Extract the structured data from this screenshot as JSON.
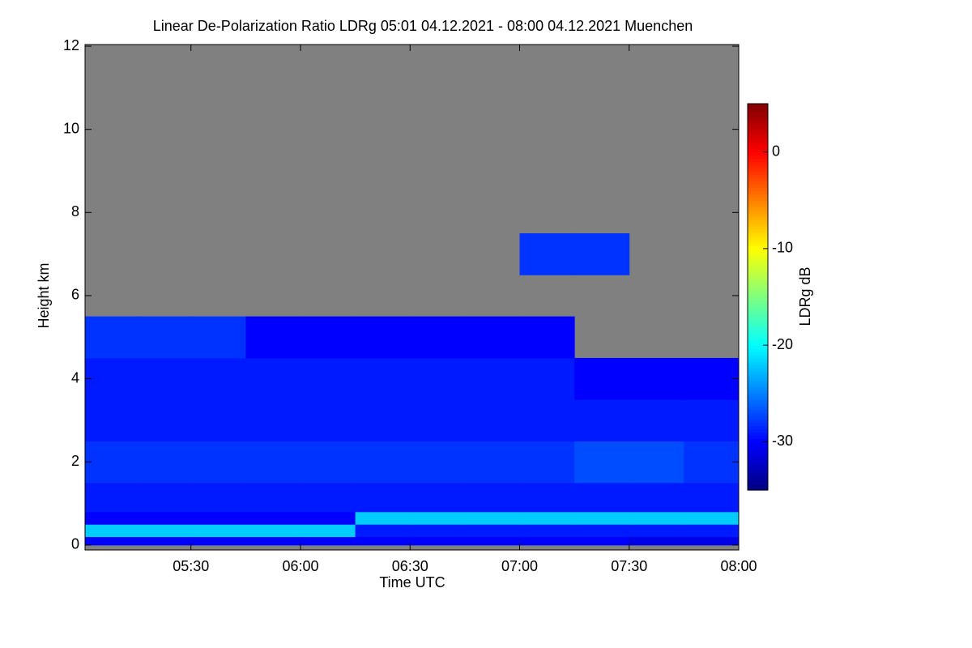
{
  "chart_data": {
    "type": "heatmap",
    "title": "Linear De-Polarization Ratio LDRg   05:01 04.12.2021 - 08:00 04.12.2021 Muenchen",
    "xlabel": "Time UTC",
    "ylabel": "Height km",
    "colorbar_label": "LDRg dB",
    "xlim": [
      301,
      480
    ],
    "ylim": [
      -0.12,
      12.04
    ],
    "xticks": [
      {
        "value": 330,
        "label": "05:30"
      },
      {
        "value": 360,
        "label": "06:00"
      },
      {
        "value": 390,
        "label": "06:30"
      },
      {
        "value": 420,
        "label": "07:00"
      },
      {
        "value": 450,
        "label": "07:30"
      },
      {
        "value": 480,
        "label": "08:00"
      }
    ],
    "yticks": [
      0,
      2,
      4,
      6,
      8,
      10,
      12
    ],
    "clim": [
      -35,
      5
    ],
    "cticks": [
      0,
      -10,
      -20,
      -30
    ],
    "colormap": "jet",
    "nodata_color": "#808080",
    "xbins": [
      301,
      315,
      330,
      345,
      360,
      375,
      390,
      405,
      420,
      435,
      450,
      465,
      480
    ],
    "ybins": [
      0,
      0.2,
      0.5,
      0.8,
      1.5,
      2.5,
      3.5,
      4.5,
      5.5,
      6.5,
      7.5,
      12
    ],
    "values": [
      [
        -30,
        -30,
        -30,
        -30,
        -30,
        -30,
        -30,
        -30,
        -30,
        -30,
        -31,
        -31
      ],
      [
        -22,
        -22,
        -22,
        -22,
        -22,
        -29,
        -29,
        -29,
        -29,
        -29,
        -29,
        -29
      ],
      [
        -30,
        -30,
        -30,
        -30,
        -30,
        -22,
        -22,
        -22,
        -22,
        -22,
        -22,
        -22
      ],
      [
        -29,
        -29,
        -29,
        -29,
        -29,
        -29,
        -29,
        -29,
        -29,
        -29,
        -29,
        -29
      ],
      [
        -28,
        -28,
        -28,
        -28,
        -28,
        -28,
        -28,
        -28,
        -28,
        -27,
        -27,
        -28
      ],
      [
        -29,
        -29,
        -29,
        -29,
        -29,
        -29,
        -29,
        -29,
        -29,
        -29,
        -29,
        -29
      ],
      [
        -29,
        -29,
        -29,
        -29,
        -29,
        -29,
        -29,
        -29,
        -29,
        -30,
        -30,
        -30
      ],
      [
        -28,
        -28,
        -28,
        -30,
        -30,
        -30,
        -30,
        -30,
        -30,
        null,
        null,
        null
      ],
      [
        null,
        null,
        null,
        null,
        null,
        null,
        null,
        null,
        null,
        null,
        null,
        null
      ],
      [
        null,
        null,
        null,
        null,
        null,
        null,
        null,
        null,
        -28,
        -28,
        null,
        null
      ],
      [
        null,
        null,
        null,
        null,
        null,
        null,
        null,
        null,
        null,
        null,
        null,
        null
      ]
    ]
  }
}
